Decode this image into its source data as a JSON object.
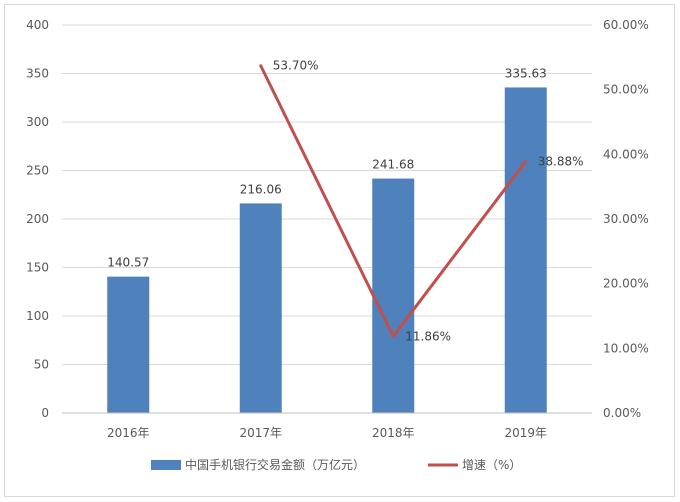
{
  "chart_data": {
    "type": "bar",
    "categories": [
      "2016年",
      "2017年",
      "2018年",
      "2019年"
    ],
    "series": [
      {
        "name": "中国手机银行交易金额（万亿元）",
        "type": "bar",
        "axis": "left",
        "values": [
          140.57,
          216.06,
          241.68,
          335.63
        ],
        "labels": [
          "140.57",
          "216.06",
          "241.68",
          "335.63"
        ],
        "color": "#4f81bd"
      },
      {
        "name": "增速（%）",
        "type": "line",
        "axis": "right",
        "x": [
          "2017年",
          "2018年",
          "2019年"
        ],
        "values": [
          53.7,
          11.86,
          38.88
        ],
        "labels": [
          "53.70%",
          "11.86%",
          "38.88%"
        ],
        "color": "#c0504d"
      }
    ],
    "ylim_left": [
      0,
      400
    ],
    "ylim_right": [
      0,
      60
    ],
    "left_ticks": [
      "0",
      "50",
      "100",
      "150",
      "200",
      "250",
      "300",
      "350",
      "400"
    ],
    "right_ticks": [
      "0.00%",
      "10.00%",
      "20.00%",
      "30.00%",
      "40.00%",
      "50.00%",
      "60.00%"
    ],
    "grid": true,
    "legend_position": "bottom"
  }
}
